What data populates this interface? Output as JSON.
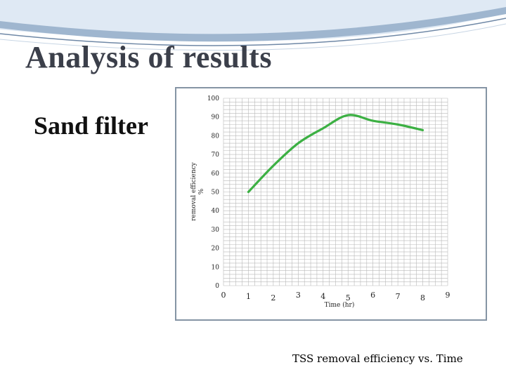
{
  "slide": {
    "title": "Analysis of results",
    "subtitle": "Sand filter",
    "caption": "TSS removal efficiency vs. Time"
  },
  "colors": {
    "line": "#3cb043",
    "grid": "#b9b9b9",
    "frame": "#8594a4",
    "swoosh": "#9fb6cf"
  },
  "chart_data": {
    "type": "line",
    "title": "",
    "xlabel": "Time (hr)",
    "ylabel_line1": "removal efficiency",
    "ylabel_line2": "%",
    "xlim": [
      0,
      9
    ],
    "ylim": [
      0,
      100
    ],
    "x_ticks": [
      0,
      1,
      2,
      3,
      4,
      5,
      6,
      7,
      8,
      9
    ],
    "y_ticks": [
      0,
      10,
      20,
      30,
      40,
      50,
      60,
      70,
      80,
      90,
      100
    ],
    "grid": true,
    "legend": "none",
    "series": [
      {
        "x": [
          1,
          2,
          3,
          4,
          5,
          6,
          7,
          8
        ],
        "y": [
          50,
          64,
          76,
          84,
          91,
          88,
          86,
          83
        ]
      }
    ]
  }
}
